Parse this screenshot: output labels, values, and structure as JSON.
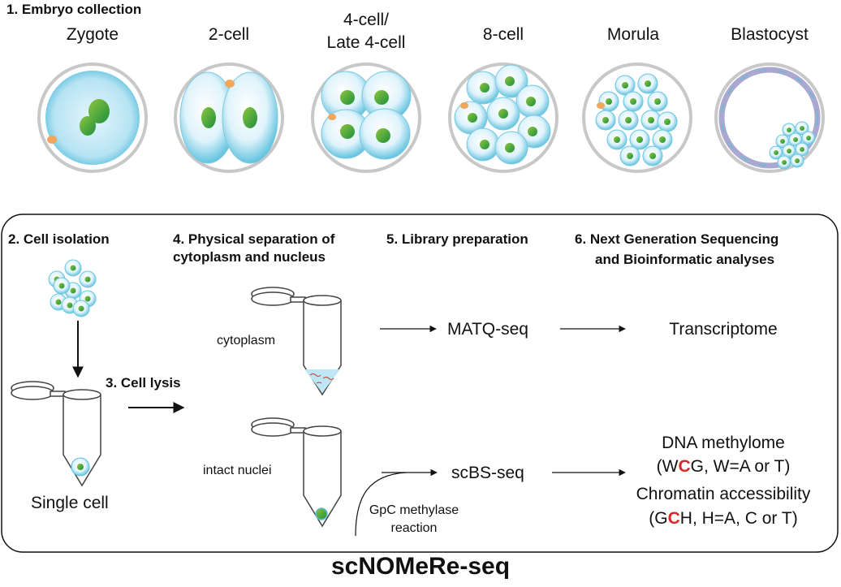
{
  "step1": {
    "title": "1. Embryo collection"
  },
  "stages": [
    {
      "label": "Zygote"
    },
    {
      "label": "2-cell"
    },
    {
      "label_line1": "4-cell/",
      "label_line2": "Late 4-cell"
    },
    {
      "label": "8-cell"
    },
    {
      "label": "Morula"
    },
    {
      "label": "Blastocyst"
    }
  ],
  "step2": {
    "title": "2. Cell isolation",
    "single_cell_label": "Single cell"
  },
  "step3": {
    "title": "3. Cell lysis"
  },
  "step4": {
    "title_line1": "4. Physical separation of",
    "title_line2": "cytoplasm and nucleus",
    "cytoplasm_label": "cytoplasm",
    "nuclei_label": "intact nuclei",
    "gpc_line1": "GpC methylase",
    "gpc_line2": "reaction"
  },
  "step5": {
    "title": "5. Library preparation",
    "matq": "MATQ-seq",
    "scbs": "scBS-seq"
  },
  "step6": {
    "title_line1": "6. Next Generation Sequencing",
    "title_line2": "and Bioinformatic analyses",
    "transcriptome": "Transcriptome",
    "methylome": "DNA methylome",
    "wcg_pre": "(W",
    "wcg_red": "C",
    "wcg_post": "G, W=A or T)",
    "chromatin": "Chromatin accessibility",
    "gch_pre": "(G",
    "gch_red": "C",
    "gch_post": "H, H=A, C or T)"
  },
  "method_name": "scNOMeRe-seq",
  "colors": {
    "cell_fill": "#dff2fa",
    "cell_edge": "#5cc0dc",
    "nucleus": "#2f9a3a",
    "polar_body": "#f2a65a",
    "zona": "#c8c8c8",
    "highlight": "#d62828"
  }
}
